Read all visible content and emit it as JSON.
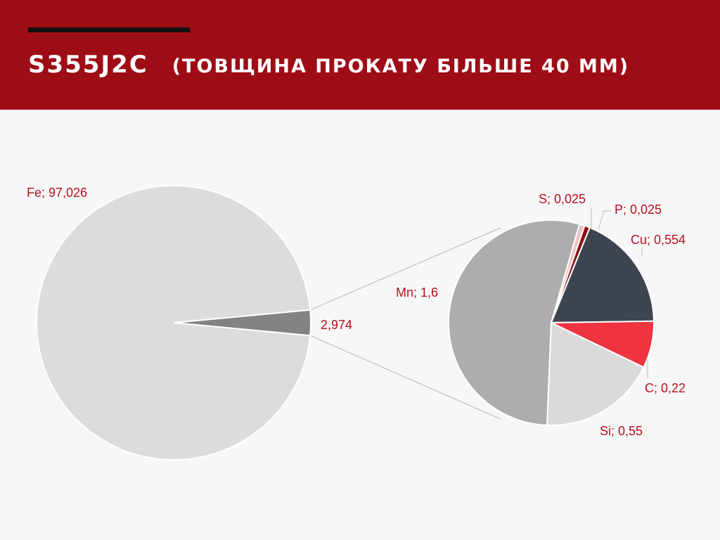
{
  "header": {
    "title_main": "S355J2C",
    "title_sub": "(ТОВЩИНА ПРОКАТУ БІЛЬШЕ 40 ММ)"
  },
  "colors": {
    "header_bg": "#9e0c16",
    "label_text": "#b5101c",
    "leader_line": "#b8b8b8",
    "slice_border": "#ffffff"
  },
  "chart_data": {
    "type": "pie",
    "subtype": "pie-of-pie",
    "main_pie": {
      "slices": [
        {
          "name": "Fe",
          "value": 97.026,
          "label": "Fe; 97,026",
          "color": "#dcdcdc"
        },
        {
          "name": "other",
          "value": 2.974,
          "label": "2,974",
          "color": "#838383"
        }
      ]
    },
    "secondary_pie": {
      "slices": [
        {
          "name": "Mn",
          "value": 1.6,
          "label": "Mn; 1,6",
          "color": "#adadad"
        },
        {
          "name": "S",
          "value": 0.025,
          "label": "S; 0,025",
          "color": "#f3c2c4"
        },
        {
          "name": "P",
          "value": 0.025,
          "label": "P; 0,025",
          "color": "#8c1014"
        },
        {
          "name": "Cu",
          "value": 0.554,
          "label": "Cu; 0,554",
          "color": "#3e4552"
        },
        {
          "name": "C",
          "value": 0.22,
          "label": "C; 0,22",
          "color": "#ef3340"
        },
        {
          "name": "Si",
          "value": 0.55,
          "label": "Si; 0,55",
          "color": "#dadada"
        }
      ]
    }
  }
}
